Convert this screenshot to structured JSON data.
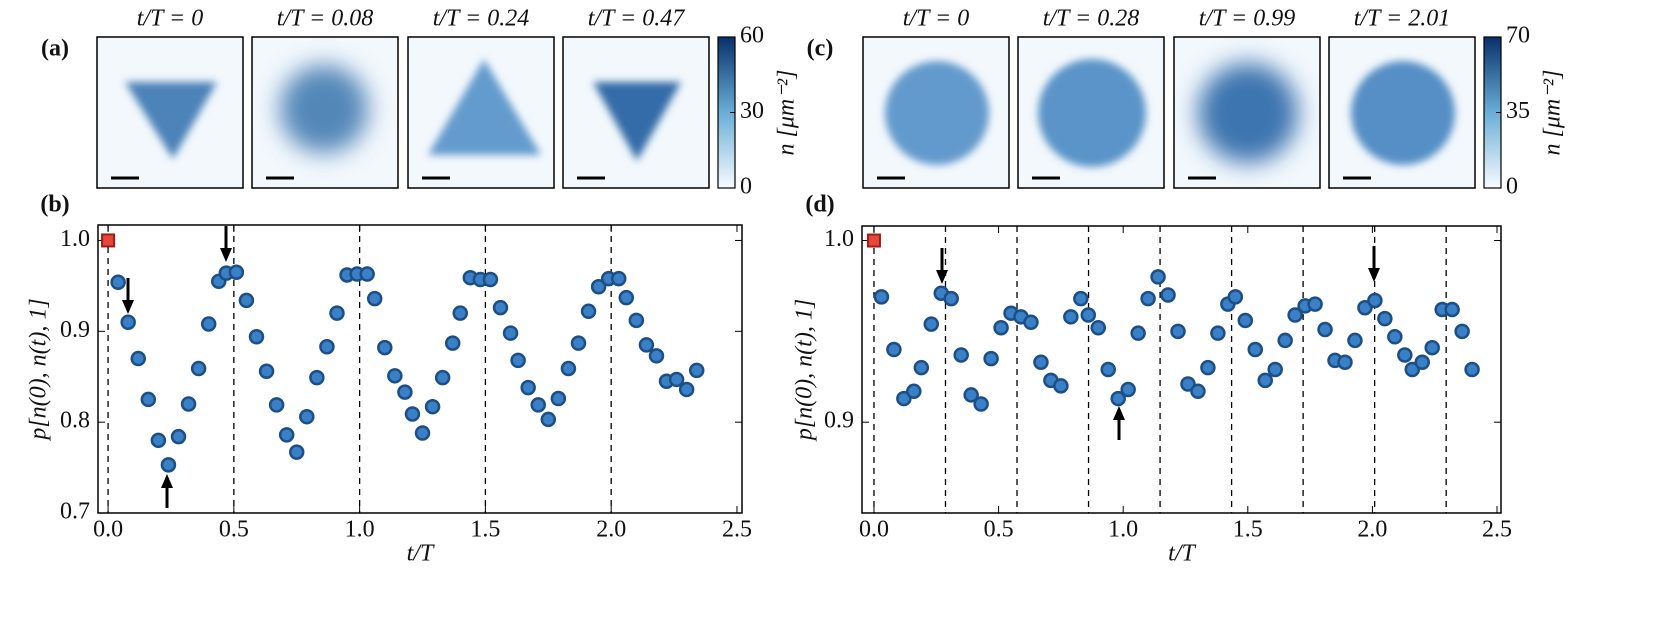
{
  "chart_data": [
    {
      "type": "scatter",
      "panel_label": "(b)",
      "xlabel": "t/T",
      "ylabel": "p[n(0), n(t), 1]",
      "xlim": [
        -0.04,
        2.52
      ],
      "ylim": [
        0.7,
        1.017
      ],
      "xticks": [
        {
          "value": 0,
          "label": "0.0"
        },
        0.5,
        {
          "value": 1,
          "label": "1.0"
        },
        1.5,
        {
          "value": 2,
          "label": "2.0"
        },
        2.5
      ],
      "yticks": [
        0.7,
        0.8,
        0.9,
        {
          "value": 1,
          "label": "1.0"
        }
      ],
      "vlines": [
        0,
        0.5,
        1,
        1.5,
        2
      ],
      "color": "#3a80c6",
      "highlight": {
        "x": 0,
        "value": 1.0,
        "color": "#e4473c"
      },
      "x": [
        0.04,
        0.08,
        0.12,
        0.16,
        0.2,
        0.24,
        0.28,
        0.32,
        0.36,
        0.4,
        0.44,
        0.47,
        0.51,
        0.55,
        0.59,
        0.63,
        0.67,
        0.71,
        0.75,
        0.79,
        0.83,
        0.87,
        0.91,
        0.95,
        0.99,
        1.03,
        1.06,
        1.1,
        1.14,
        1.18,
        1.21,
        1.25,
        1.29,
        1.33,
        1.37,
        1.4,
        1.44,
        1.48,
        1.52,
        1.56,
        1.6,
        1.63,
        1.67,
        1.71,
        1.75,
        1.79,
        1.83,
        1.87,
        1.91,
        1.95,
        1.99,
        2.03,
        2.06,
        2.1,
        2.14,
        2.18,
        2.22,
        2.26,
        2.3,
        2.34
      ],
      "values": [
        0.954,
        0.91,
        0.87,
        0.825,
        0.78,
        0.753,
        0.784,
        0.82,
        0.859,
        0.908,
        0.955,
        0.964,
        0.965,
        0.934,
        0.894,
        0.856,
        0.819,
        0.786,
        0.767,
        0.806,
        0.849,
        0.883,
        0.92,
        0.962,
        0.963,
        0.963,
        0.936,
        0.882,
        0.851,
        0.833,
        0.809,
        0.788,
        0.817,
        0.849,
        0.887,
        0.92,
        0.959,
        0.957,
        0.957,
        0.926,
        0.898,
        0.868,
        0.838,
        0.819,
        0.803,
        0.826,
        0.859,
        0.887,
        0.922,
        0.949,
        0.958,
        0.958,
        0.937,
        0.912,
        0.885,
        0.873,
        0.845,
        0.847,
        0.836,
        0.857
      ],
      "images": {
        "panel_label": "(a)",
        "titles": [
          "t/T = 0",
          "t/T = 0.08",
          "t/T = 0.24",
          "t/T = 0.47"
        ],
        "colorbar": {
          "label": "n [μm⁻²]",
          "ticks": [
            0,
            30,
            60
          ],
          "lim": [
            0,
            60
          ]
        }
      }
    },
    {
      "type": "scatter",
      "panel_label": "(d)",
      "xlabel": "t/T",
      "ylabel": "p[n(0), n(t), 1]",
      "xlim": [
        -0.048,
        2.516
      ],
      "ylim": [
        0.85,
        1.008
      ],
      "xticks": [
        {
          "value": 0,
          "label": "0.0"
        },
        0.5,
        {
          "value": 1,
          "label": "1.0"
        },
        1.5,
        {
          "value": 2,
          "label": "2.0"
        },
        2.5
      ],
      "yticks": [
        0.9,
        {
          "value": 1,
          "label": "1.0"
        }
      ],
      "vlines": [
        0,
        0.287,
        0.574,
        0.861,
        1.148,
        1.435,
        1.722,
        2.009,
        2.296
      ],
      "color": "#3a80c6",
      "highlight": {
        "x": 0,
        "value": 1.0,
        "color": "#e4473c"
      },
      "x": [
        0.03,
        0.08,
        0.12,
        0.16,
        0.19,
        0.23,
        0.27,
        0.31,
        0.35,
        0.39,
        0.43,
        0.47,
        0.51,
        0.55,
        0.59,
        0.63,
        0.67,
        0.71,
        0.75,
        0.79,
        0.83,
        0.86,
        0.9,
        0.94,
        0.98,
        1.02,
        1.06,
        1.1,
        1.14,
        1.18,
        1.22,
        1.26,
        1.3,
        1.34,
        1.38,
        1.42,
        1.45,
        1.49,
        1.53,
        1.57,
        1.61,
        1.65,
        1.69,
        1.73,
        1.77,
        1.81,
        1.85,
        1.89,
        1.93,
        1.97,
        2.01,
        2.05,
        2.09,
        2.13,
        2.16,
        2.2,
        2.24,
        2.28,
        2.32,
        2.36,
        2.4
      ],
      "values": [
        0.969,
        0.94,
        0.913,
        0.917,
        0.93,
        0.954,
        0.971,
        0.968,
        0.937,
        0.915,
        0.91,
        0.935,
        0.952,
        0.96,
        0.958,
        0.955,
        0.933,
        0.923,
        0.92,
        0.958,
        0.968,
        0.959,
        0.952,
        0.929,
        0.913,
        0.918,
        0.949,
        0.968,
        0.98,
        0.97,
        0.95,
        0.921,
        0.917,
        0.93,
        0.949,
        0.965,
        0.969,
        0.956,
        0.94,
        0.923,
        0.929,
        0.945,
        0.959,
        0.964,
        0.965,
        0.951,
        0.934,
        0.933,
        0.945,
        0.963,
        0.967,
        0.957,
        0.947,
        0.937,
        0.929,
        0.933,
        0.941,
        0.962,
        0.962,
        0.95,
        0.929
      ],
      "images": {
        "panel_label": "(c)",
        "titles": [
          "t/T = 0",
          "t/T = 0.28",
          "t/T = 0.99",
          "t/T = 2.01"
        ],
        "colorbar": {
          "label": "n [μm⁻²]",
          "ticks": [
            0,
            35,
            70
          ],
          "lim": [
            0,
            70
          ]
        }
      }
    }
  ]
}
